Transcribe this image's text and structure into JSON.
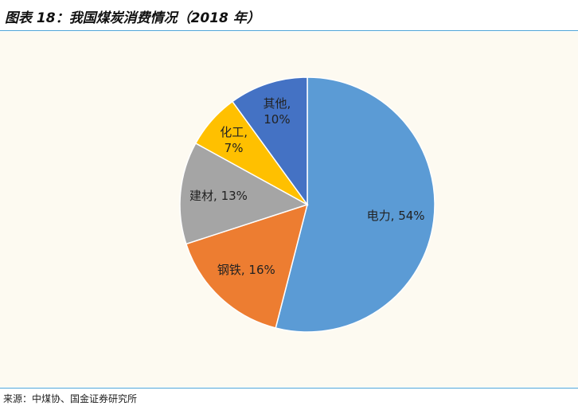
{
  "header": {
    "title": "图表 18：我国煤炭消费情况（2018 年）"
  },
  "chart_data": {
    "type": "pie",
    "values": [
      54,
      16,
      13,
      7,
      10
    ],
    "value_labels": [
      "电力, 54%",
      "钢铁, 16%",
      "建材, 13%",
      "化工,\n7%",
      "其他,\n10%"
    ],
    "colors": [
      "#5b9bd5",
      "#ed7d31",
      "#a5a5a5",
      "#ffc000",
      "#4472c4"
    ]
  },
  "footer": {
    "source": "来源：中煤协、国金证券研究所"
  }
}
